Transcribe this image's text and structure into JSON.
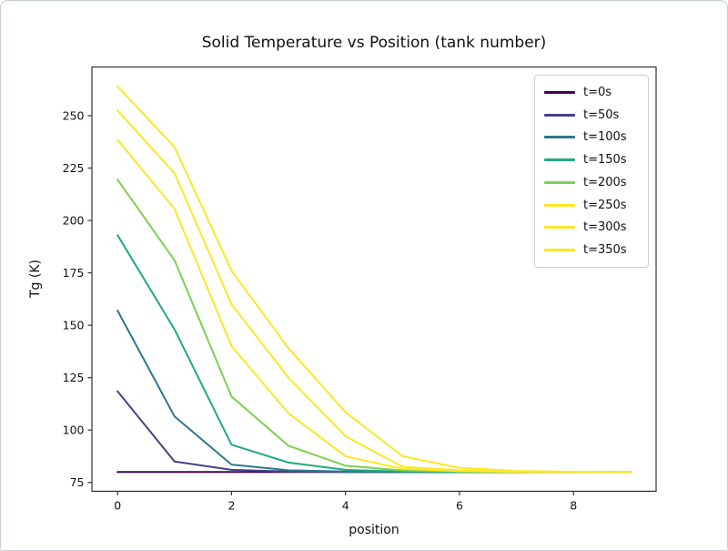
{
  "chart_data": {
    "type": "line",
    "title": "Solid Temperature vs Position (tank number)",
    "xlabel": "position",
    "ylabel": "Tg (K)",
    "x": [
      0,
      1,
      2,
      3,
      4,
      5,
      6,
      7,
      8,
      9
    ],
    "series": [
      {
        "name": "t=0s",
        "color": "#440154",
        "values": [
          80,
          80,
          80,
          80,
          80,
          80,
          80,
          80,
          80,
          80
        ]
      },
      {
        "name": "t=50s",
        "color": "#414487",
        "values": [
          118.5,
          85,
          81,
          80.2,
          80,
          80,
          80,
          80,
          80,
          80
        ]
      },
      {
        "name": "t=100s",
        "color": "#2a788e",
        "values": [
          157,
          106.5,
          83.5,
          80.8,
          80.2,
          80,
          80,
          80,
          80,
          80
        ]
      },
      {
        "name": "t=150s",
        "color": "#22a884",
        "values": [
          193,
          148,
          93,
          84.5,
          81,
          80.2,
          80,
          80,
          80,
          80
        ]
      },
      {
        "name": "t=200s",
        "color": "#7ad151",
        "values": [
          219.5,
          181,
          116,
          92.5,
          83,
          80.7,
          80.2,
          80,
          80,
          80
        ]
      },
      {
        "name": "t=250s",
        "color": "#fde725",
        "values": [
          238.5,
          205.5,
          140,
          108,
          87.5,
          81.5,
          80.4,
          80.1,
          80,
          80
        ]
      },
      {
        "name": "t=300s",
        "color": "#fde725",
        "values": [
          252.5,
          222.5,
          160,
          125,
          97,
          82.5,
          80.8,
          80.2,
          80,
          80
        ]
      },
      {
        "name": "t=350s",
        "color": "#fde725",
        "values": [
          264,
          235,
          176,
          139,
          108.5,
          87.5,
          82,
          80.5,
          80.1,
          80
        ]
      }
    ],
    "xlim": [
      -0.45,
      9.45
    ],
    "ylim": [
      70.8,
      273.2
    ],
    "xticks": [
      0,
      2,
      4,
      6,
      8
    ],
    "yticks": [
      75,
      100,
      125,
      150,
      175,
      200,
      225,
      250
    ],
    "grid": false,
    "legend_position": "upper right",
    "line_width": 2,
    "background": "#ffffff",
    "spine_color": "#333333",
    "text_color": "#111111"
  }
}
